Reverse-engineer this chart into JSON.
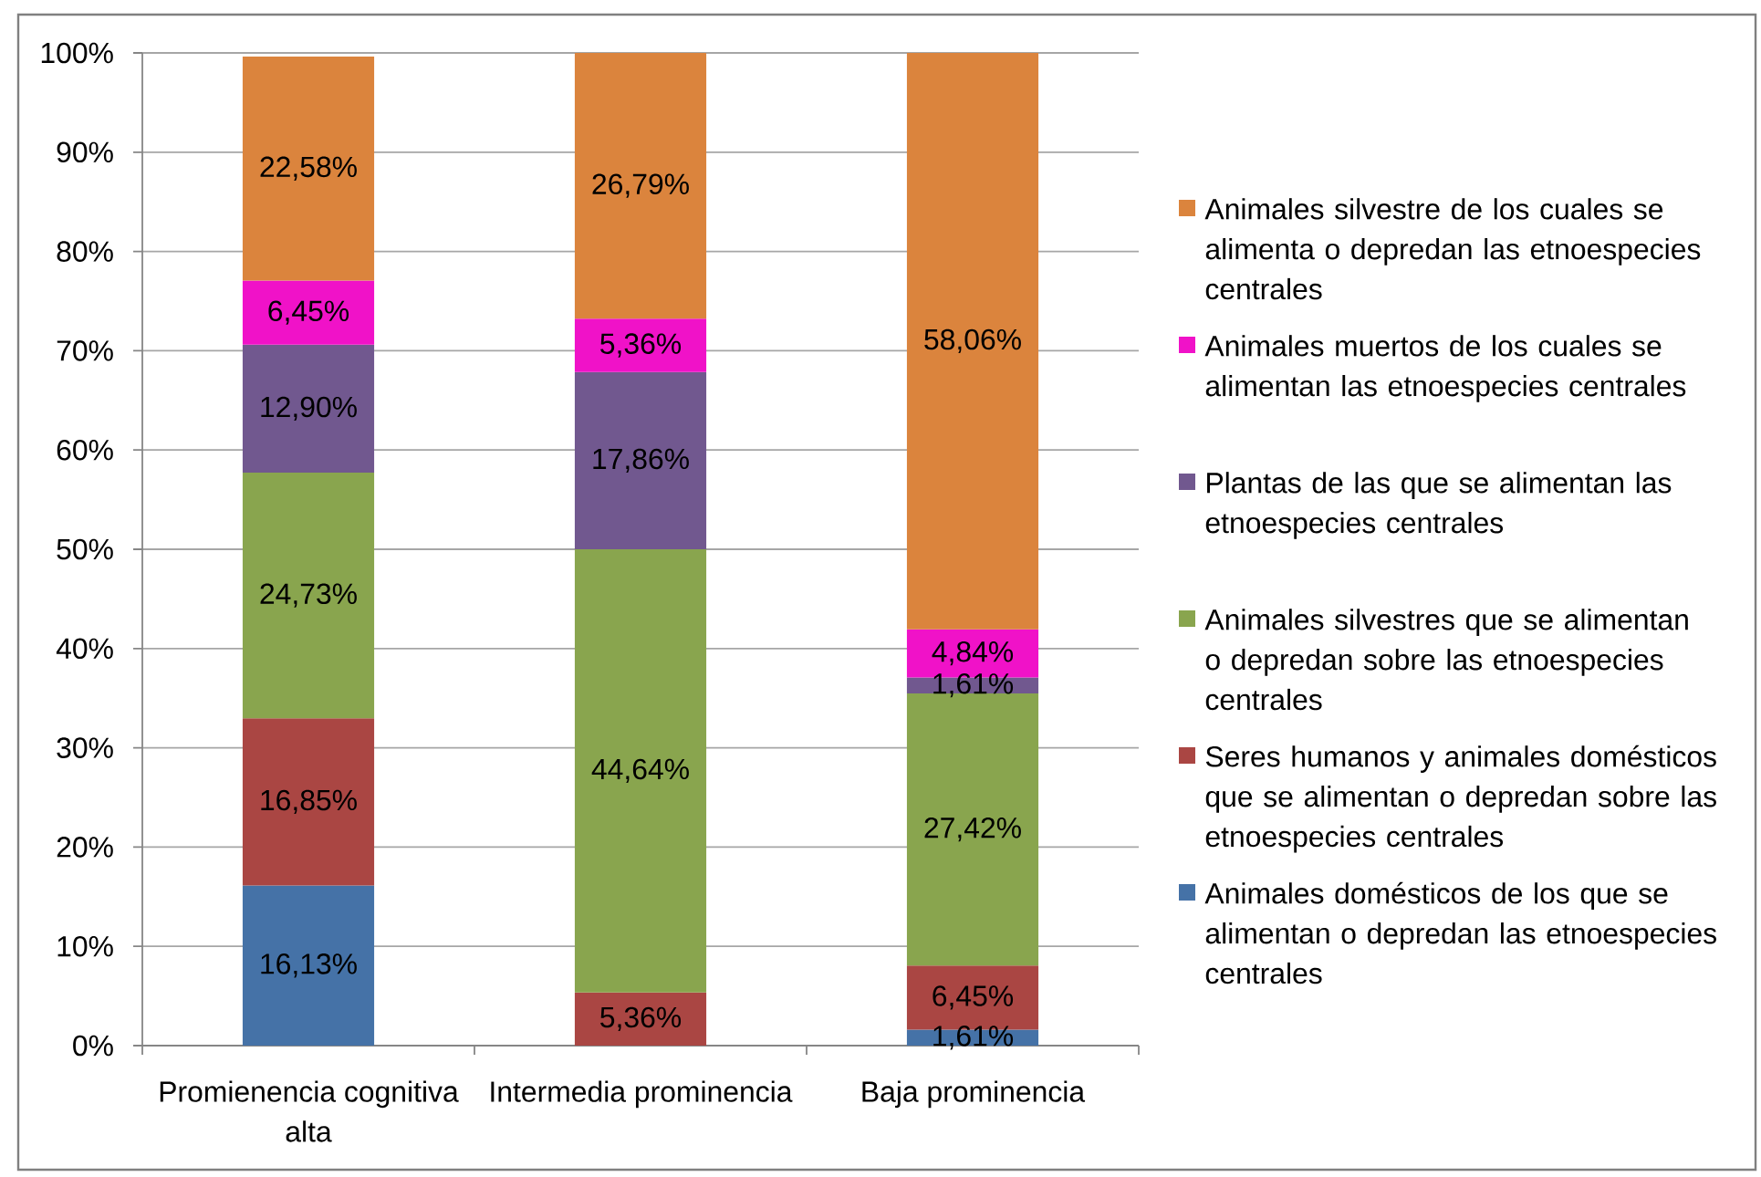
{
  "chart_data": {
    "type": "bar",
    "stacked": true,
    "categories": [
      "Promienencia cognitiva alta",
      "Intermedia prominencia",
      "Baja prominencia"
    ],
    "series": [
      {
        "name": "Animales domésticos de los que se alimentan o depredan las etnoespecies centrales",
        "color": "#4572a7",
        "values": [
          16.13,
          null,
          1.61
        ],
        "value_labels": [
          "16,13%",
          null,
          "1,61%"
        ]
      },
      {
        "name": "Seres humanos y animales domésticos que se alimentan o depredan sobre las etnoespecies centrales",
        "color": "#aa4643",
        "values": [
          16.85,
          5.36,
          6.45
        ],
        "value_labels": [
          "16,85%",
          "5,36%",
          "6,45%"
        ]
      },
      {
        "name": "Animales silvestres que se alimentan o depredan sobre las etnoespecies centrales",
        "color": "#89a54e",
        "values": [
          24.73,
          44.64,
          27.42
        ],
        "value_labels": [
          "24,73%",
          "44,64%",
          "27,42%"
        ]
      },
      {
        "name": "Plantas de las que se alimentan las etnoespecies centrales",
        "color": "#71588f",
        "values": [
          12.9,
          17.86,
          1.61
        ],
        "value_labels": [
          "12,90%",
          "17,86%",
          "1,61%"
        ]
      },
      {
        "name": "Animales muertos de los cuales se alimentan las etnoespecies centrales",
        "color": "#f012c8",
        "values": [
          6.45,
          5.36,
          4.84
        ],
        "value_labels": [
          "6,45%",
          "5,36%",
          "4,84%"
        ]
      },
      {
        "name": "Animales silvestre de los cuales se alimenta o depredan las etnoespecies centrales",
        "color": "#db843d",
        "values": [
          22.58,
          26.79,
          58.06
        ],
        "value_labels": [
          "22,58%",
          "26,79%",
          "58,06%"
        ]
      }
    ],
    "ylim": [
      0,
      100
    ],
    "yticks": [
      {
        "value": 0,
        "label": "0%"
      },
      {
        "value": 10,
        "label": "10%"
      },
      {
        "value": 20,
        "label": "20%"
      },
      {
        "value": 30,
        "label": "30%"
      },
      {
        "value": 40,
        "label": "40%"
      },
      {
        "value": 50,
        "label": "50%"
      },
      {
        "value": 60,
        "label": "60%"
      },
      {
        "value": 70,
        "label": "70%"
      },
      {
        "value": 80,
        "label": "80%"
      },
      {
        "value": 90,
        "label": "90%"
      },
      {
        "value": 100,
        "label": "100%"
      }
    ],
    "grid": "y",
    "legend": "right"
  }
}
